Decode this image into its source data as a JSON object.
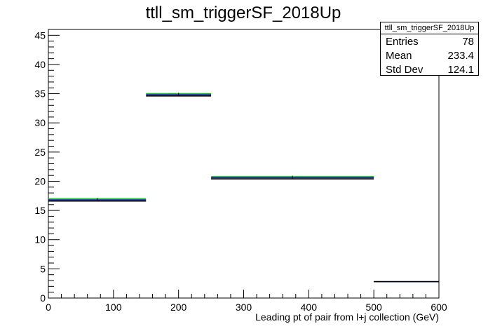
{
  "chart_data": {
    "type": "histogram",
    "title": "ttll_sm_triggerSF_2018Up",
    "xlabel": "Leading pt of pair from l+j collection (GeV)",
    "ylabel": "",
    "xlim": [
      0,
      600
    ],
    "ylim": [
      0,
      46
    ],
    "x_ticks": [
      0,
      100,
      200,
      300,
      400,
      500,
      600
    ],
    "y_ticks": [
      0,
      5,
      10,
      15,
      20,
      25,
      30,
      35,
      40,
      45
    ],
    "x_tick_labels": [
      "0",
      "100",
      "200",
      "300",
      "400",
      "500",
      "600"
    ],
    "y_tick_labels": [
      "0",
      "5",
      "10",
      "15",
      "20",
      "25",
      "30",
      "35",
      "40",
      "45"
    ],
    "grid": false,
    "bins": [
      {
        "x0": 0,
        "x1": 150,
        "value": 16.8
      },
      {
        "x0": 150,
        "x1": 250,
        "value": 34.8
      },
      {
        "x0": 250,
        "x1": 500,
        "value": 20.6
      },
      {
        "x0": 500,
        "x1": 600,
        "value": 2.8
      }
    ],
    "series": [
      {
        "color": "#00cc00",
        "values": [
          17.0,
          35.0,
          20.8,
          2.8
        ]
      },
      {
        "color": "#0000aa",
        "values": [
          16.8,
          34.8,
          20.6,
          2.8
        ]
      },
      {
        "color": "#000000",
        "values": [
          16.6,
          34.6,
          20.4,
          2.8
        ]
      }
    ],
    "stats": {
      "title": "ttll_sm_triggerSF_2018Up",
      "rows": [
        {
          "label": "Entries",
          "value": "78"
        },
        {
          "label": "Mean",
          "value": "233.4"
        },
        {
          "label": "Std Dev",
          "value": "124.1"
        }
      ]
    }
  }
}
